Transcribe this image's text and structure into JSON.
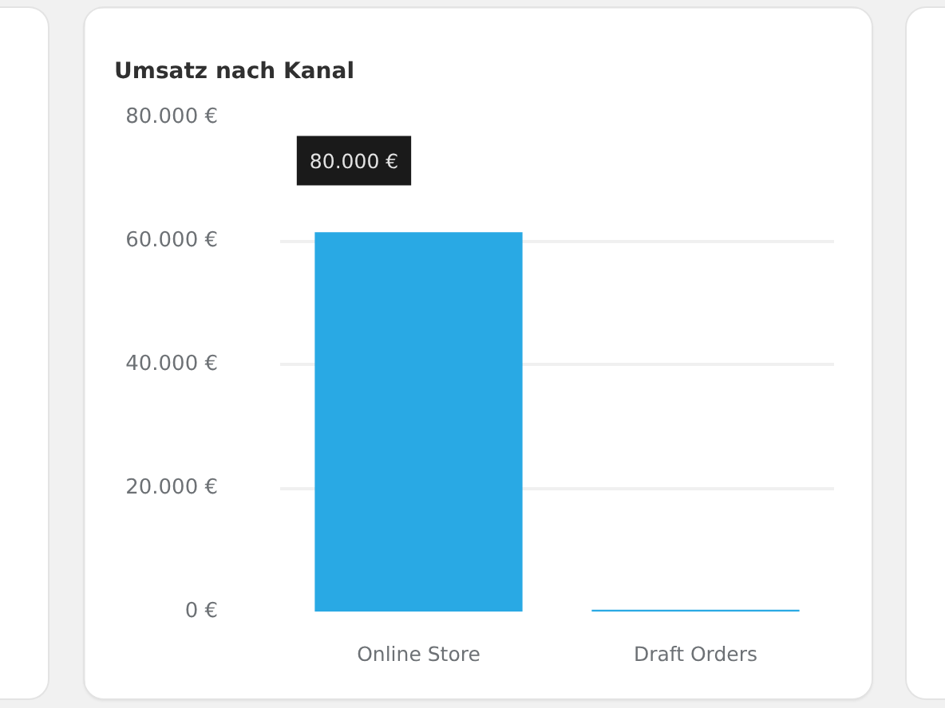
{
  "chart_data": {
    "type": "bar",
    "title": "Umsatz nach Kanal",
    "categories": [
      "Online Store",
      "Draft Orders"
    ],
    "values": [
      61400,
      300
    ],
    "color": "#29a9e4",
    "ylim": [
      0,
      80000
    ],
    "yticks": [
      {
        "value": 0,
        "label": "0 €"
      },
      {
        "value": 20000,
        "label": "20.000 €"
      },
      {
        "value": 40000,
        "label": "40.000 €"
      },
      {
        "value": 60000,
        "label": "60.000 €"
      },
      {
        "value": 80000,
        "label": "80.000 €"
      }
    ],
    "grid": "y",
    "annotations": [
      "80.000 €"
    ]
  }
}
